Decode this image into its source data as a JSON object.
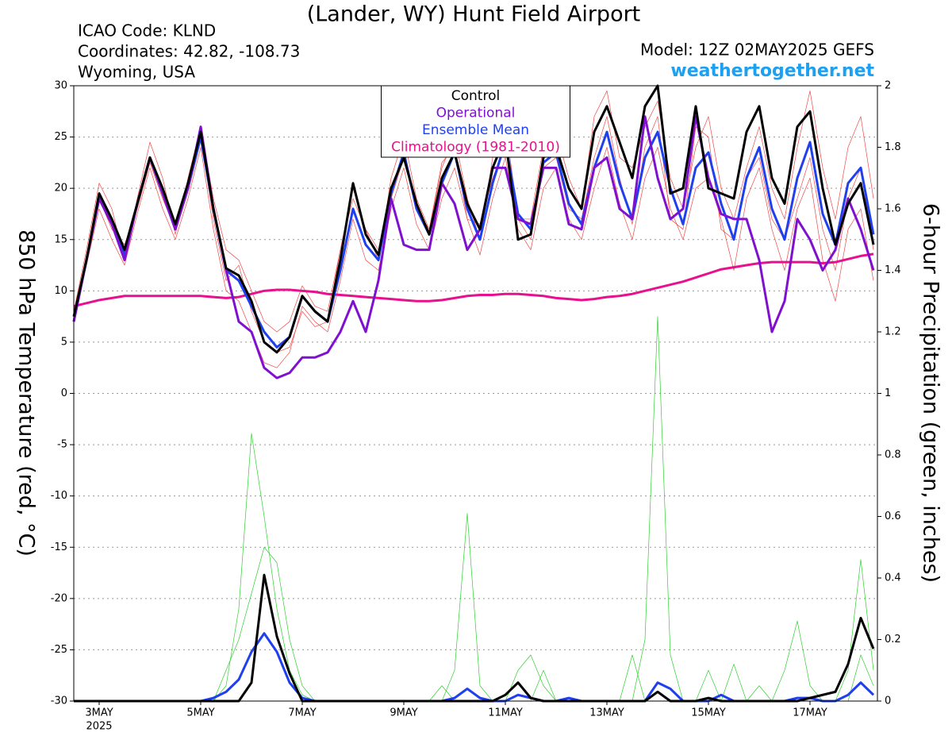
{
  "chart_data": {
    "type": "line",
    "title": "(Lander, WY) Hunt Field Airport",
    "annotations": [
      "ICAO Code: KLND",
      "Coordinates: 42.82, -108.73",
      "Wyoming, USA",
      "Model: 12Z 02MAY2025 GEFS",
      "weathertogether.net"
    ],
    "y_label": "850 hPa Temperature (red, °C)",
    "y2_label": "6-hour Precipitation (green, inches)",
    "year_label": "2025",
    "categories": [
      null,
      null,
      "3MAY",
      null,
      null,
      null,
      null,
      null,
      null,
      null,
      "5MAY",
      null,
      null,
      null,
      null,
      null,
      null,
      null,
      "7MAY",
      null,
      null,
      null,
      null,
      null,
      null,
      null,
      "9MAY",
      null,
      null,
      null,
      null,
      null,
      null,
      null,
      "11MAY",
      null,
      null,
      null,
      null,
      null,
      null,
      null,
      "13MAY",
      null,
      null,
      null,
      null,
      null,
      null,
      null,
      "15MAY",
      null,
      null,
      null,
      null,
      null,
      null,
      null,
      "17MAY",
      null,
      null,
      null,
      null,
      null
    ],
    "ylim": [
      -30,
      30
    ],
    "yticks": [
      30,
      25,
      20,
      15,
      10,
      5,
      0,
      -5,
      -10,
      -15,
      -20,
      -25,
      -30
    ],
    "y2lim": [
      0,
      2
    ],
    "y2ticks": [
      0,
      0.2,
      0.4,
      0.6,
      0.8,
      1,
      1.2,
      1.4,
      1.6,
      1.8,
      2
    ],
    "grid": true,
    "legend": "top-center",
    "series": [
      {
        "name": "Control",
        "color": "#000000",
        "values": [
          7.5,
          13,
          19.5,
          17,
          14,
          18.5,
          23,
          20,
          16.5,
          20.5,
          25.5,
          18,
          12.2,
          11.5,
          9,
          5,
          4,
          5.5,
          9.5,
          8,
          7,
          13,
          20.5,
          15.5,
          13.5,
          20,
          23,
          18.5,
          15.5,
          21,
          23.5,
          18.5,
          16,
          22,
          25,
          15,
          15.5,
          23,
          24,
          20,
          18,
          25.5,
          28,
          24.5,
          21,
          28,
          30,
          19.5,
          20,
          28,
          20,
          19.5,
          19,
          25.5,
          28,
          21,
          18.5,
          26,
          27.5,
          20,
          14.5,
          18.5,
          20.5,
          14.5
        ]
      },
      {
        "name": "Operational",
        "color": "#8010d0",
        "values": [
          7,
          13,
          19,
          16.5,
          13,
          18.5,
          23,
          19.5,
          16,
          20,
          26,
          18,
          12,
          7,
          6,
          2.5,
          1.5,
          2,
          3.5,
          3.5,
          4,
          6,
          9,
          6,
          11,
          19,
          14.5,
          14,
          14,
          20.5,
          18.5,
          14,
          16,
          22,
          22,
          17,
          16.5,
          22,
          22,
          16.5,
          16,
          22,
          23,
          18,
          17,
          27,
          21,
          17,
          18,
          27,
          21,
          17.5,
          17,
          17,
          13,
          6,
          9,
          17,
          15,
          12,
          14,
          19,
          16,
          12
        ]
      },
      {
        "name": "Ensemble Mean",
        "color": "#2040f0",
        "values": [
          7,
          13,
          19,
          16.5,
          13.5,
          18.5,
          23,
          19.5,
          16,
          20,
          25,
          18,
          12,
          11,
          8.5,
          6,
          4.5,
          5.5,
          9.5,
          8,
          7,
          12,
          18,
          14.5,
          13,
          19.5,
          23.5,
          18,
          15.5,
          20.5,
          23.5,
          18,
          15,
          20.5,
          24.5,
          17.5,
          16,
          22.5,
          23.5,
          18.5,
          16.5,
          22,
          25.5,
          20.5,
          17,
          23,
          25.5,
          20,
          16.5,
          22,
          23.5,
          18.5,
          15,
          21,
          24,
          18,
          15,
          21,
          24.5,
          17.5,
          14.5,
          20.5,
          22,
          15.5
        ]
      },
      {
        "name": "Climatology (1981-2010)",
        "color": "#e8108c",
        "values": [
          8.5,
          8.8,
          9.1,
          9.3,
          9.5,
          9.5,
          9.5,
          9.5,
          9.5,
          9.5,
          9.5,
          9.4,
          9.3,
          9.4,
          9.7,
          10,
          10.1,
          10.1,
          10,
          9.9,
          9.7,
          9.6,
          9.5,
          9.4,
          9.3,
          9.2,
          9.1,
          9,
          9,
          9.1,
          9.3,
          9.5,
          9.6,
          9.6,
          9.7,
          9.7,
          9.6,
          9.5,
          9.3,
          9.2,
          9.1,
          9.2,
          9.4,
          9.5,
          9.7,
          10,
          10.3,
          10.6,
          10.9,
          11.3,
          11.7,
          12.1,
          12.3,
          12.5,
          12.7,
          12.8,
          12.8,
          12.8,
          12.8,
          12.7,
          12.8,
          13.1,
          13.4,
          13.6
        ]
      }
    ],
    "members": [
      {
        "color": "#f04848",
        "values": [
          8,
          14,
          20.5,
          18,
          13,
          19,
          24.5,
          21,
          15.5,
          21,
          26,
          19,
          14,
          13,
          10,
          7,
          6,
          7,
          10.5,
          8.5,
          8,
          14,
          19,
          16,
          13,
          21,
          25,
          19,
          16,
          22,
          25,
          19,
          15,
          23,
          26.5,
          17,
          17,
          24,
          25.5,
          21,
          18,
          27,
          29.5,
          23,
          22,
          26,
          28.5,
          21,
          18,
          24,
          27,
          20,
          17,
          22,
          26,
          20,
          17,
          24,
          29.5,
          22,
          17,
          24,
          27,
          19
        ]
      },
      {
        "color": "#f04848",
        "values": [
          7,
          12.5,
          18,
          15,
          12.5,
          17.5,
          22,
          18,
          15,
          19,
          24,
          16,
          10,
          9,
          6,
          3,
          2.5,
          4,
          8.5,
          7,
          6,
          11,
          17,
          13,
          12,
          18,
          22,
          16.5,
          14,
          19,
          22,
          17,
          13.5,
          19,
          23,
          16,
          14,
          20,
          22,
          17,
          15,
          20,
          24,
          18.5,
          15,
          21,
          24,
          18,
          15,
          20,
          21,
          17,
          12,
          19,
          22,
          16,
          12,
          18,
          21,
          13,
          9,
          16,
          18,
          11
        ]
      },
      {
        "color": "#f04848",
        "values": [
          7.5,
          13.5,
          19,
          16,
          14.5,
          18,
          22.5,
          19,
          16,
          20.5,
          25,
          17,
          11,
          12.5,
          8,
          5,
          4,
          4.5,
          8,
          6.5,
          7,
          14,
          20,
          16,
          14,
          19,
          23,
          18,
          16,
          22.5,
          24,
          17,
          16.5,
          21,
          24,
          17,
          15,
          22,
          23,
          18,
          17,
          23,
          27,
          21,
          16.5,
          24,
          27,
          17,
          16,
          26,
          25,
          16,
          15,
          21,
          23,
          17,
          15,
          19,
          23,
          16,
          12,
          19,
          22,
          14
        ]
      }
    ],
    "precip_members": [
      {
        "color": "#30d030",
        "axis": "y2",
        "values": [
          0,
          0,
          0,
          0,
          0,
          0,
          0,
          0,
          0,
          0,
          0,
          0,
          0.05,
          0.3,
          0.87,
          0.6,
          0.3,
          0.1,
          0.02,
          0,
          0,
          0,
          0,
          0,
          0,
          0,
          0,
          0,
          0,
          0,
          0.1,
          0.61,
          0.05,
          0,
          0,
          0,
          0,
          0.1,
          0,
          0,
          0,
          0,
          0,
          0,
          0,
          0.2,
          1.25,
          0.15,
          0,
          0,
          0,
          0,
          0,
          0,
          0.05,
          0,
          0,
          0,
          0,
          0,
          0,
          0.1,
          0.46,
          0.1
        ]
      },
      {
        "color": "#30d030",
        "axis": "y2",
        "values": [
          0,
          0,
          0,
          0,
          0,
          0,
          0,
          0,
          0,
          0,
          0,
          0,
          0.1,
          0.2,
          0.35,
          0.5,
          0.45,
          0.2,
          0.05,
          0,
          0,
          0,
          0,
          0,
          0,
          0,
          0,
          0,
          0,
          0.05,
          0,
          0,
          0,
          0,
          0,
          0.1,
          0.15,
          0.05,
          0,
          0,
          0,
          0,
          0,
          0,
          0.15,
          0,
          0,
          0,
          0,
          0,
          0.1,
          0,
          0.12,
          0,
          0,
          0,
          0.1,
          0.26,
          0.05,
          0,
          0,
          0,
          0.15,
          0.05
        ]
      }
    ],
    "precip_series": [
      {
        "color": "#2040f0",
        "axis": "y2",
        "values": [
          0,
          0,
          0,
          0,
          0,
          0,
          0,
          0,
          0,
          0,
          0,
          0.01,
          0.03,
          0.07,
          0.16,
          0.22,
          0.16,
          0.06,
          0.01,
          0,
          0,
          0,
          0,
          0,
          0,
          0,
          0,
          0,
          0,
          0,
          0.01,
          0.04,
          0.01,
          0,
          0,
          0.02,
          0.01,
          0,
          0,
          0.01,
          0,
          0,
          0,
          0,
          0,
          0,
          0.06,
          0.04,
          0,
          0,
          0,
          0.02,
          0,
          0,
          0,
          0,
          0,
          0.01,
          0.01,
          0,
          0,
          0.02,
          0.06,
          0.02
        ]
      },
      {
        "color": "#000000",
        "axis": "y2",
        "values": [
          0,
          0,
          0,
          0,
          0,
          0,
          0,
          0,
          0,
          0,
          0,
          0,
          0,
          0,
          0.06,
          0.41,
          0.21,
          0.09,
          0,
          0,
          0,
          0,
          0,
          0,
          0,
          0,
          0,
          0,
          0,
          0,
          0,
          0,
          0,
          0,
          0.02,
          0.06,
          0.01,
          0,
          0,
          0,
          0,
          0,
          0,
          0,
          0,
          0,
          0.03,
          0,
          0,
          0,
          0.01,
          0,
          0,
          0,
          0,
          0,
          0,
          0,
          0.01,
          0.02,
          0.03,
          0.12,
          0.27,
          0.17
        ]
      }
    ]
  }
}
